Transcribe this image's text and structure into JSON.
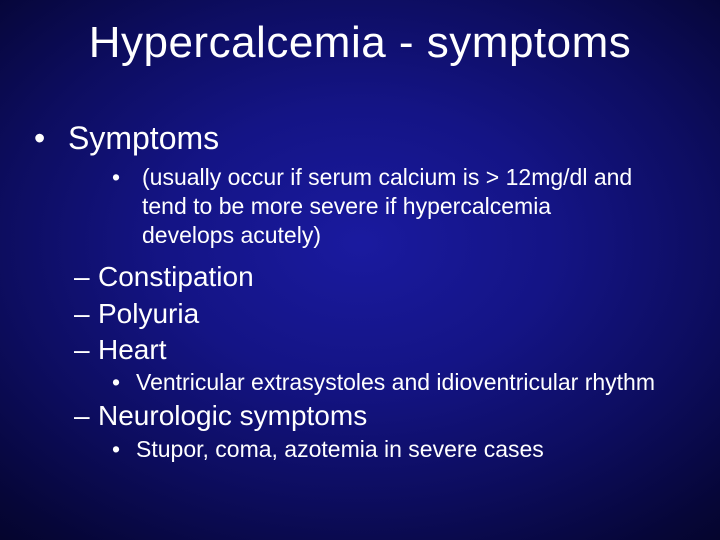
{
  "background_colors": {
    "center": "#1a1a9f",
    "outer": "#020218"
  },
  "text_color": "#ffffff",
  "title": "Hypercalcemia - symptoms",
  "title_fontsize": 44,
  "bullets": {
    "lvl1_fontsize": 32,
    "lvl2_fontsize": 28,
    "lvl3_fontsize": 23,
    "items": {
      "symptoms_label": "Symptoms",
      "note": "(usually occur if serum calcium is > 12mg/dl and tend to be more severe if hypercalcemia develops acutely)",
      "constipation": "Constipation",
      "polyuria": "Polyuria",
      "heart": "Heart",
      "heart_sub": "Ventricular extrasystoles and idioventricular rhythm",
      "neuro": "Neurologic symptoms",
      "neuro_sub": "Stupor, coma, azotemia in severe cases"
    }
  }
}
